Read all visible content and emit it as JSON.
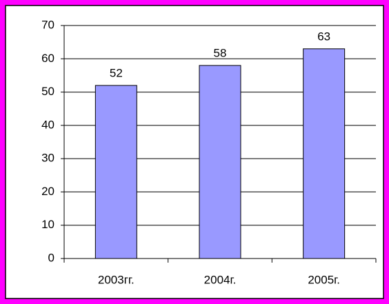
{
  "chart_data": {
    "type": "bar",
    "categories": [
      "2003гг.",
      "2004г.",
      "2005г."
    ],
    "values": [
      52,
      58,
      63
    ],
    "color": "#9999ff",
    "ylim": [
      0,
      70
    ],
    "yticks": [
      0,
      10,
      20,
      30,
      40,
      50,
      60,
      70
    ],
    "grid": true
  }
}
